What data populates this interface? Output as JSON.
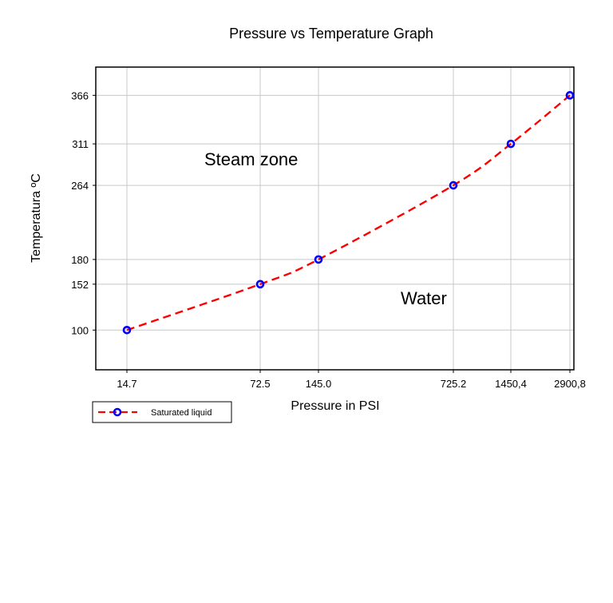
{
  "chart_data": {
    "type": "line",
    "title": "Pressure vs Temperature Graph",
    "xlabel": "Pressure in PSI",
    "ylabel": "Temperatura ºC",
    "x_tick_labels": [
      "14.7",
      "72.5",
      "145.0",
      "725.2",
      "1450,4",
      "2900,8"
    ],
    "y_tick_labels": [
      "100",
      "152",
      "180",
      "264",
      "311",
      "366"
    ],
    "y_ticks": [
      100,
      152,
      180,
      264,
      311,
      366
    ],
    "ylim": [
      55,
      398
    ],
    "x_scale": "categorical, irregular spacing",
    "grid": true,
    "legend_position": "bottom-left, below the axes",
    "series": [
      {
        "name": "Saturated liquid",
        "x": [
          "14.7",
          "72.5",
          "145.0",
          "725.2",
          "1450,4",
          "2900,8"
        ],
        "values": [
          100,
          152,
          180,
          264,
          311,
          366
        ],
        "line_color": "#ff0000",
        "line_style": "dashed",
        "marker": "circle",
        "marker_color": "#0000ff"
      }
    ],
    "annotations": [
      {
        "text": "Steam zone",
        "near": "upper-left"
      },
      {
        "text": "Water",
        "near": "lower-right"
      }
    ]
  }
}
